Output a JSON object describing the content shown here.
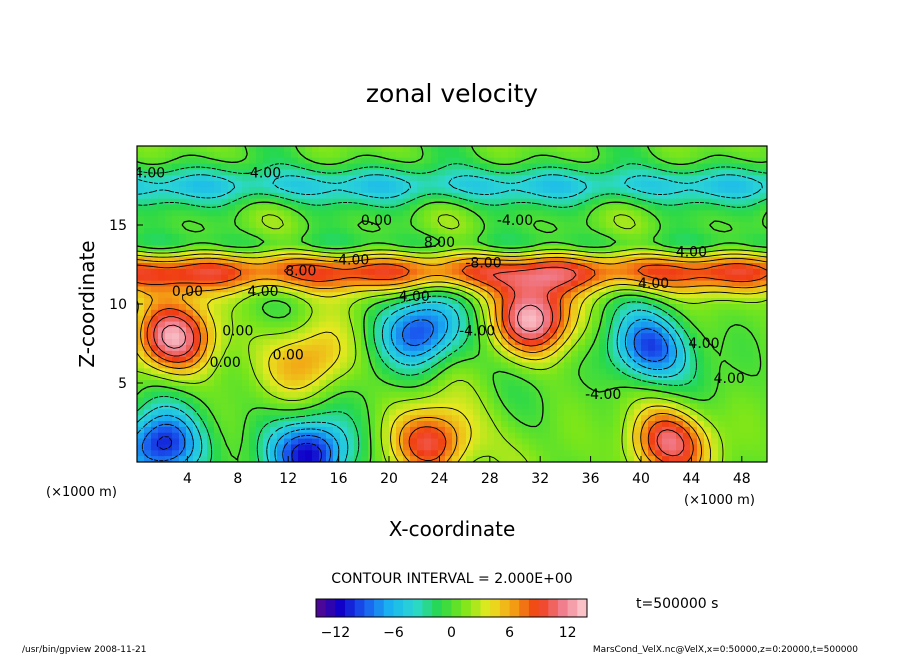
{
  "chart_data": {
    "type": "heatmap",
    "title": "zonal velocity",
    "xlabel": "X-coordinate",
    "ylabel": "Z-coordinate",
    "x_unit_left": "(×1000 m)",
    "x_unit_right": "(×1000 m)",
    "xlim": [
      0,
      50
    ],
    "ylim": [
      0,
      20
    ],
    "x_ticks": [
      4,
      8,
      12,
      16,
      20,
      24,
      28,
      32,
      36,
      40,
      44,
      48
    ],
    "y_ticks": [
      5,
      10,
      15
    ],
    "contour_interval_text": "CONTOUR INTERVAL = 2.000E+00",
    "time_text": "t=500000 s",
    "colorbar": {
      "range": [
        -14,
        14
      ],
      "ticks": [
        -12,
        -6,
        0,
        6,
        12
      ],
      "colors": [
        "#5a0a8c",
        "#1000c8",
        "#1a5cf0",
        "#19b4f0",
        "#2cd8d2",
        "#26d84c",
        "#7ae61a",
        "#e8e820",
        "#f4a014",
        "#f03c14",
        "#f07c8c",
        "#fcd2d6"
      ]
    },
    "contour_labels": [
      "4.00",
      "-4.00",
      "0.00",
      "-4.00",
      "4.00",
      "0.00",
      "8.00",
      "8.00",
      "-8.00",
      "4.00",
      "-4.00",
      "4.00",
      "4.00",
      "0.00",
      "-4.00",
      "4.00",
      "0.00",
      "0.00",
      "-4.00",
      "4.00"
    ],
    "features": [
      {
        "kind": "jet",
        "z": 12.0,
        "value": 8
      },
      {
        "kind": "jet",
        "z": 17.5,
        "value": -4
      },
      {
        "kind": "blob",
        "x": 3.0,
        "z": 7.8,
        "value": 12
      },
      {
        "kind": "blob",
        "x": 22.5,
        "z": 8.2,
        "value": -10
      },
      {
        "kind": "blob",
        "x": 31.5,
        "z": 9.0,
        "value": 12
      },
      {
        "kind": "blob",
        "x": 40.5,
        "z": 7.2,
        "value": -10
      },
      {
        "kind": "blob",
        "x": 23.5,
        "z": 1.2,
        "value": 10
      },
      {
        "kind": "blob",
        "x": 42.0,
        "z": 1.2,
        "value": 10
      },
      {
        "kind": "blob",
        "x": 14.0,
        "z": 0.5,
        "value": -12
      },
      {
        "kind": "blob",
        "x": 2.0,
        "z": 1.0,
        "value": -12
      },
      {
        "kind": "blob",
        "x": 14.0,
        "z": 6.5,
        "value": 6
      }
    ]
  },
  "footer": {
    "left": "/usr/bin/gpview  2008-11-21",
    "right": "MarsCond_VelX.nc@VelX,x=0:50000,z=0:20000,t=500000"
  }
}
